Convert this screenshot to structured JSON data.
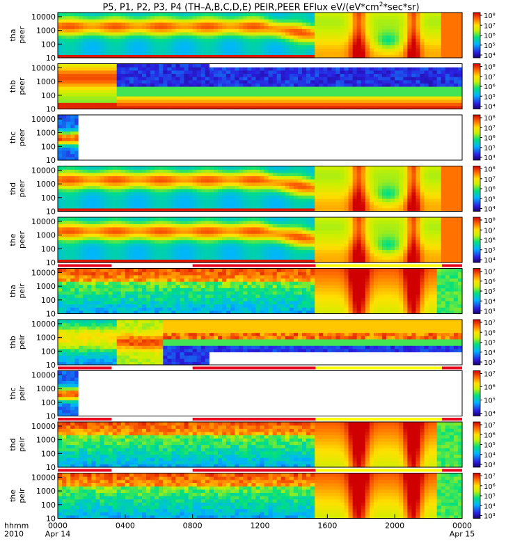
{
  "title": {
    "main": "P5, P1, P2, P3, P4 (TH–A,B,C,D,E) PEIR,PEER EFlux eV/(eV*cm",
    "sup": "2",
    "tail": "*sec*sr)"
  },
  "chart_data": {
    "type": "heatmap",
    "x_axis": {
      "label_line1": "hhmm",
      "label_line2": "2010",
      "ticks": [
        "0000",
        "0400",
        "0800",
        "1200",
        "1600",
        "2000",
        "0000"
      ],
      "date_labels": {
        "start": "Apr 14",
        "end": "Apr 15"
      },
      "range_hours": [
        0,
        24
      ]
    },
    "panels": [
      {
        "probe": "tha",
        "species": "peer",
        "ylabel": "tha\npeer",
        "yticks": [
          "10000",
          "1000",
          "100",
          "10"
        ],
        "cbar": [
          "10⁸",
          "10⁷",
          "10⁶",
          "10⁵",
          "10⁴"
        ],
        "coverage_hours": [
          0,
          24
        ],
        "mode": "electron",
        "bar_above": false
      },
      {
        "probe": "thb",
        "species": "peer",
        "ylabel": "thb\npeer",
        "yticks": [
          "10000",
          "1000",
          "100",
          "10"
        ],
        "cbar": [
          "10⁸",
          "10⁷",
          "10⁶",
          "10⁵",
          "10⁴"
        ],
        "coverage_hours": [
          0,
          24
        ],
        "mode": "thb_e",
        "bar_above": false
      },
      {
        "probe": "thc",
        "species": "peer",
        "ylabel": "thc\npeer",
        "yticks": [
          "10000",
          "1000",
          "100",
          "10"
        ],
        "cbar": [
          "10⁸",
          "10⁷",
          "10⁶",
          "10⁵",
          "10⁴"
        ],
        "coverage_hours": [
          0,
          1.2
        ],
        "mode": "thc",
        "bar_above": false
      },
      {
        "probe": "thd",
        "species": "peer",
        "ylabel": "thd\npeer",
        "yticks": [
          "10000",
          "1000",
          "100",
          "10"
        ],
        "cbar": [
          "10⁸",
          "10⁷",
          "10⁶",
          "10⁵",
          "10⁴"
        ],
        "coverage_hours": [
          0,
          24
        ],
        "mode": "electron",
        "bar_above": false
      },
      {
        "probe": "the",
        "species": "peer",
        "ylabel": "the\npeer",
        "yticks": [
          "10000",
          "1000",
          "100",
          "10"
        ],
        "cbar": [
          "10⁸",
          "10⁷",
          "10⁶",
          "10⁵",
          "10⁴"
        ],
        "coverage_hours": [
          0,
          24
        ],
        "mode": "electron",
        "bar_above": false
      },
      {
        "probe": "tha",
        "species": "peir",
        "ylabel": "tha\npeir",
        "yticks": [
          "10000",
          "1000",
          "100",
          "10"
        ],
        "cbar": [
          "10⁷",
          "10⁶",
          "10⁵",
          "10⁴",
          "10³"
        ],
        "coverage_hours": [
          0,
          24
        ],
        "mode": "ion",
        "bar_above": true
      },
      {
        "probe": "thb",
        "species": "peir",
        "ylabel": "thb\npeir",
        "yticks": [
          "10000",
          "1000",
          "100",
          "10"
        ],
        "cbar": [
          "10⁷",
          "10⁶",
          "10⁵",
          "10⁴",
          "10³"
        ],
        "coverage_hours": [
          0,
          24
        ],
        "mode": "thb_i",
        "bar_above": false
      },
      {
        "probe": "thc",
        "species": "peir",
        "ylabel": "thc\npeir",
        "yticks": [
          "10000",
          "1000",
          "100",
          "10"
        ],
        "cbar": [
          "10⁷",
          "10⁶",
          "10⁵",
          "10⁴"
        ],
        "coverage_hours": [
          0,
          1.2
        ],
        "mode": "thc",
        "bar_above": true
      },
      {
        "probe": "thd",
        "species": "peir",
        "ylabel": "thd\npeir",
        "yticks": [
          "10000",
          "1000",
          "100",
          "10"
        ],
        "cbar": [
          "10⁷",
          "10⁶",
          "10⁵",
          "10⁴",
          "10³"
        ],
        "coverage_hours": [
          0,
          24
        ],
        "mode": "ion",
        "bar_above": true
      },
      {
        "probe": "the",
        "species": "peir",
        "ylabel": "the\npeir",
        "yticks": [
          "10000",
          "1000",
          "100",
          "10"
        ],
        "cbar": [
          "10⁷",
          "10⁶",
          "10⁵",
          "10⁴",
          "10³"
        ],
        "coverage_hours": [
          0,
          24
        ],
        "mode": "ion",
        "bar_above": true
      }
    ],
    "mode_bars": {
      "colors": {
        "red": "#e8001c",
        "yellow": "#ffff00",
        "white": "#ffffff"
      },
      "segments_hours": [
        {
          "start": 0.0,
          "end": 3.2,
          "color": "red"
        },
        {
          "start": 3.2,
          "end": 8.0,
          "color": "white"
        },
        {
          "start": 8.0,
          "end": 15.3,
          "color": "red"
        },
        {
          "start": 15.3,
          "end": 22.8,
          "color": "yellow"
        },
        {
          "start": 22.8,
          "end": 24.0,
          "color": "red"
        }
      ]
    },
    "ylim_log10": [
      1,
      4.3
    ]
  }
}
